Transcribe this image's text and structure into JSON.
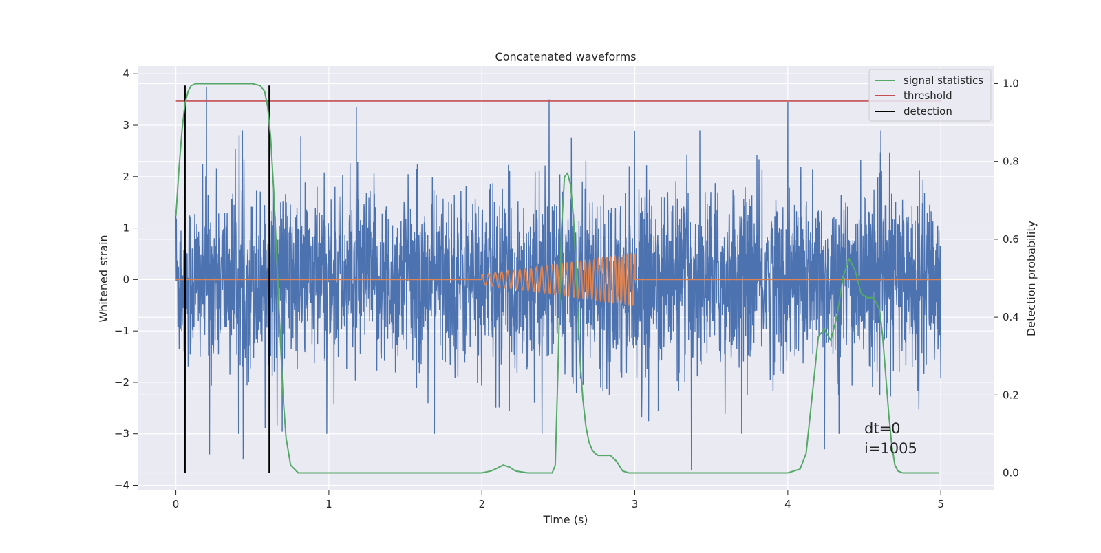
{
  "chart_data": {
    "type": "line",
    "title": "Concatenated waveforms",
    "xlabel": "Time (s)",
    "ylabel": "Whitened strain",
    "ylabel_right": "Detection probability",
    "xlim": [
      -0.25,
      5.35
    ],
    "ylim": [
      -4.1,
      4.15
    ],
    "ylim_right": [
      -0.045,
      1.045
    ],
    "xticks": [
      0,
      1,
      2,
      3,
      4,
      5
    ],
    "yticks": [
      -4,
      -3,
      -2,
      -1,
      0,
      1,
      2,
      3,
      4
    ],
    "yticks_right": [
      0.0,
      0.2,
      0.4,
      0.6,
      0.8,
      1.0
    ],
    "xtick_labels": [
      "0",
      "1",
      "2",
      "3",
      "4",
      "5"
    ],
    "ytick_labels": [
      "−4",
      "−3",
      "−2",
      "−1",
      "0",
      "1",
      "2",
      "3",
      "4"
    ],
    "ytick_labels_right": [
      "0.0",
      "0.2",
      "0.4",
      "0.6",
      "0.8",
      "1.0"
    ],
    "grid": true,
    "legend_position": "top-right",
    "colors": {
      "noise": "#4c72b0",
      "waveform": "#dd8452",
      "signal_statistics": "#55a868",
      "threshold": "#c44e52",
      "detection": "#000000",
      "background": "#eaeaf2",
      "grid": "#ffffff"
    },
    "legend": [
      {
        "label": "signal statistics",
        "color": "#55a868"
      },
      {
        "label": "threshold",
        "color": "#c44e52"
      },
      {
        "label": "detection",
        "color": "#000000"
      }
    ],
    "series": [
      {
        "id": "noise",
        "axis": "left",
        "description_values": "dense whitened noise strain sampled over 0 to 5 s, roughly within ±2.5 with spikes",
        "x_range": [
          0,
          5
        ],
        "spikes": [
          {
            "x": 0.06,
            "y": -2.7
          },
          {
            "x": 0.2,
            "y": 3.75
          },
          {
            "x": 0.22,
            "y": -3.4
          },
          {
            "x": 0.44,
            "y": -3.5
          },
          {
            "x": 1.18,
            "y": -3.15
          },
          {
            "x": 1.18,
            "y": 3.35
          },
          {
            "x": 2.44,
            "y": 3.5
          },
          {
            "x": 3.37,
            "y": -3.7
          },
          {
            "x": 4.0,
            "y": 3.45
          },
          {
            "x": 4.24,
            "y": -3.3
          }
        ]
      },
      {
        "id": "waveform",
        "axis": "left",
        "description_values": "chirp waveform from 2.0 s to 3.0 s, amplitude growing from 0.1 to 0.5, zero elsewhere",
        "chirp_start": 2.0,
        "chirp_end": 3.0,
        "amp_start": 0.1,
        "amp_end": 0.5
      },
      {
        "id": "signal_statistics",
        "name": "signal statistics",
        "axis": "right",
        "x": [
          0.0,
          0.02,
          0.04,
          0.06,
          0.08,
          0.1,
          0.13,
          0.16,
          0.2,
          0.3,
          0.4,
          0.5,
          0.55,
          0.58,
          0.6,
          0.62,
          0.64,
          0.66,
          0.68,
          0.7,
          0.72,
          0.75,
          0.8,
          0.9,
          1.0,
          1.5,
          2.0,
          2.06,
          2.1,
          2.14,
          2.18,
          2.22,
          2.3,
          2.4,
          2.46,
          2.48,
          2.5,
          2.52,
          2.54,
          2.56,
          2.58,
          2.6,
          2.62,
          2.64,
          2.66,
          2.68,
          2.7,
          2.72,
          2.74,
          2.76,
          2.8,
          2.84,
          2.88,
          2.92,
          2.96,
          3.0,
          3.5,
          4.0,
          4.08,
          4.12,
          4.16,
          4.2,
          4.24,
          4.28,
          4.32,
          4.36,
          4.4,
          4.44,
          4.48,
          4.52,
          4.56,
          4.6,
          4.62,
          4.64,
          4.66,
          4.68,
          4.7,
          4.72,
          4.75,
          4.8,
          4.9,
          4.99
        ],
        "values": [
          0.66,
          0.78,
          0.88,
          0.95,
          0.98,
          0.995,
          1.0,
          1.0,
          1.0,
          1.0,
          1.0,
          1.0,
          0.995,
          0.98,
          0.94,
          0.86,
          0.72,
          0.55,
          0.37,
          0.2,
          0.09,
          0.02,
          0.0,
          0.0,
          0.0,
          0.0,
          0.0,
          0.005,
          0.012,
          0.02,
          0.015,
          0.005,
          0.0,
          0.0,
          0.0,
          0.02,
          0.3,
          0.62,
          0.76,
          0.77,
          0.74,
          0.65,
          0.48,
          0.3,
          0.19,
          0.12,
          0.08,
          0.06,
          0.05,
          0.045,
          0.045,
          0.045,
          0.03,
          0.005,
          0.0,
          0.0,
          0.0,
          0.0,
          0.01,
          0.05,
          0.2,
          0.35,
          0.37,
          0.34,
          0.4,
          0.5,
          0.55,
          0.52,
          0.46,
          0.45,
          0.45,
          0.42,
          0.35,
          0.25,
          0.15,
          0.07,
          0.02,
          0.005,
          0.0,
          0.0,
          0.0,
          0.0
        ]
      },
      {
        "id": "threshold",
        "name": "threshold",
        "axis": "right",
        "x": [
          0,
          5
        ],
        "values": [
          0.955,
          0.955
        ]
      },
      {
        "id": "detection",
        "name": "detection",
        "axis": "right",
        "x": [
          0.06,
          0.61
        ],
        "y_range": [
          0.0,
          0.995
        ]
      }
    ],
    "annotations": [
      "dt=0",
      "i=1005"
    ]
  }
}
